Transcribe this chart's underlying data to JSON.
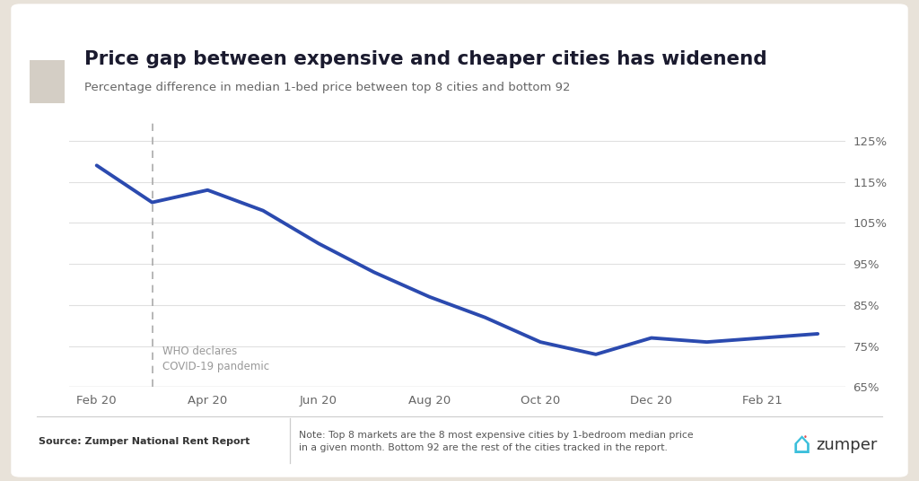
{
  "title": "Price gap between expensive and cheaper cities has widenend",
  "subtitle": "Percentage difference in median 1-bed price between top 8 cities and bottom 92",
  "x_labels": [
    "Feb 20",
    "Apr 20",
    "Jun 20",
    "Aug 20",
    "Oct 20",
    "Dec 20",
    "Feb 21"
  ],
  "x_tick_positions": [
    0,
    2,
    4,
    6,
    8,
    10,
    12
  ],
  "y_values": [
    119,
    110,
    113,
    108,
    100,
    93,
    87,
    82,
    76,
    73,
    77,
    76,
    77,
    78
  ],
  "x_data": [
    0,
    1,
    2,
    3,
    4,
    5,
    6,
    7,
    8,
    9,
    10,
    11,
    12,
    13
  ],
  "xlim": [
    -0.5,
    13.5
  ],
  "ylim": [
    65,
    130
  ],
  "yticks": [
    65,
    75,
    85,
    95,
    105,
    115,
    125
  ],
  "ytick_labels": [
    "65%",
    "75%",
    "85%",
    "95%",
    "105%",
    "115%",
    "125%"
  ],
  "line_color": "#2b4aaf",
  "outer_bg": "#e8e2d9",
  "inner_bg": "#ffffff",
  "plot_bg": "#ffffff",
  "dashed_line_x": 1,
  "annotation_text": "WHO declares\nCOVID-19 pandemic",
  "source_text": "Source: Zumper National Rent Report",
  "note_text": "Note: Top 8 markets are the 8 most expensive cities by 1-bedroom median price\nin a given month. Bottom 92 are the rest of the cities tracked in the report.",
  "title_color": "#1a1a2e",
  "subtitle_color": "#666666",
  "annotation_color": "#999999",
  "grid_color": "#e0e0e0",
  "tick_color": "#666666",
  "gray_bar_color": "#d4cec5",
  "zumper_text_color": "#333333",
  "zumper_icon_color": "#3bbfdb",
  "source_color": "#333333",
  "note_color": "#555555",
  "footer_line_color": "#cccccc"
}
